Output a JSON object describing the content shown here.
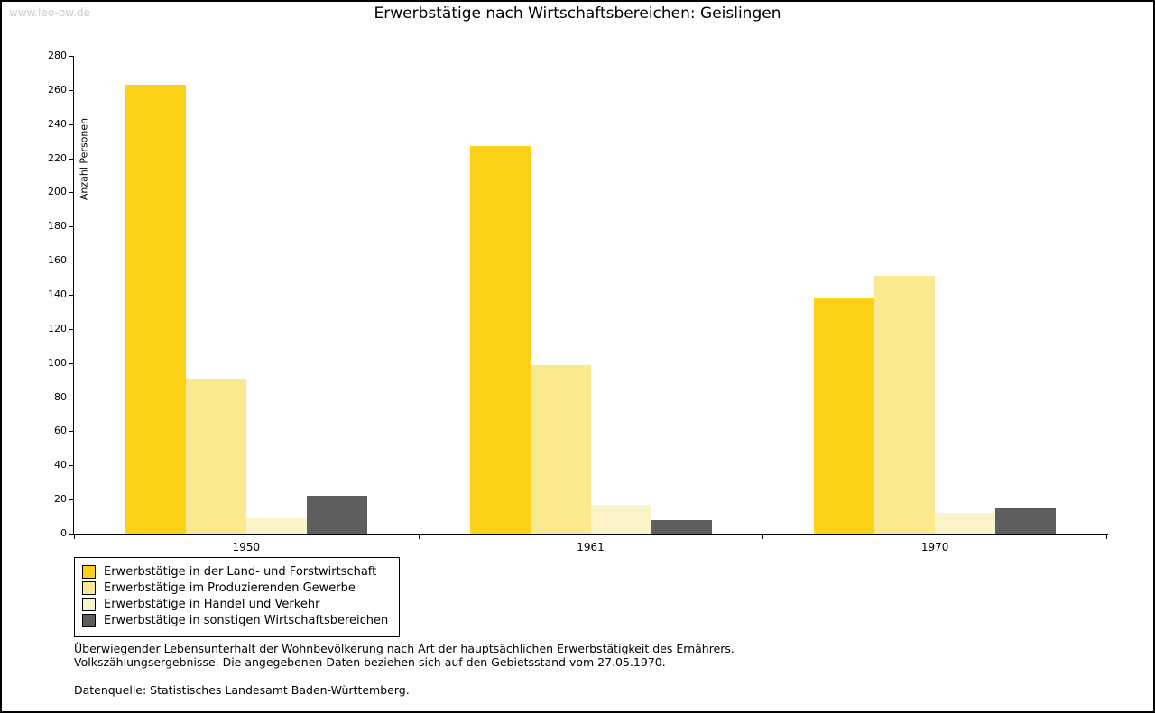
{
  "watermark": "www.leo-bw.de",
  "title": "Erwerbstätige nach Wirtschaftsbereichen: Geislingen",
  "chart_data": {
    "type": "bar",
    "categories": [
      "1950",
      "1961",
      "1970"
    ],
    "series": [
      {
        "name": "Erwerbstätige in der Land- und Forstwirtschaft",
        "color": "#FCD118",
        "values": [
          263,
          227,
          138
        ]
      },
      {
        "name": "Erwerbstätige im Produzierenden Gewerbe",
        "color": "#FAE98E",
        "values": [
          91,
          99,
          151
        ]
      },
      {
        "name": "Erwerbstätige in Handel und Verkehr",
        "color": "#FCF4C8",
        "values": [
          9,
          17,
          12
        ]
      },
      {
        "name": "Erwerbstätige in sonstigen Wirtschaftsbereichen",
        "color": "#5E5E5E",
        "values": [
          22,
          8,
          15
        ]
      }
    ],
    "title": "Erwerbstätige nach Wirtschaftsbereichen: Geislingen",
    "xlabel": "",
    "ylabel": "Anzahl Personen",
    "ylim": [
      0,
      280
    ],
    "ytick_step": 20,
    "grid": false,
    "legend_position": "bottom-left"
  },
  "footnotes": {
    "line1": "Überwiegender Lebensunterhalt der Wohnbevölkerung nach Art der hauptsächlichen Erwerbstätigkeit des Ernährers.",
    "line2": "Volkszählungsergebnisse. Die angegebenen Daten beziehen sich auf den Gebietsstand vom 27.05.1970.",
    "source": "Datenquelle: Statistisches Landesamt Baden-Württemberg."
  }
}
